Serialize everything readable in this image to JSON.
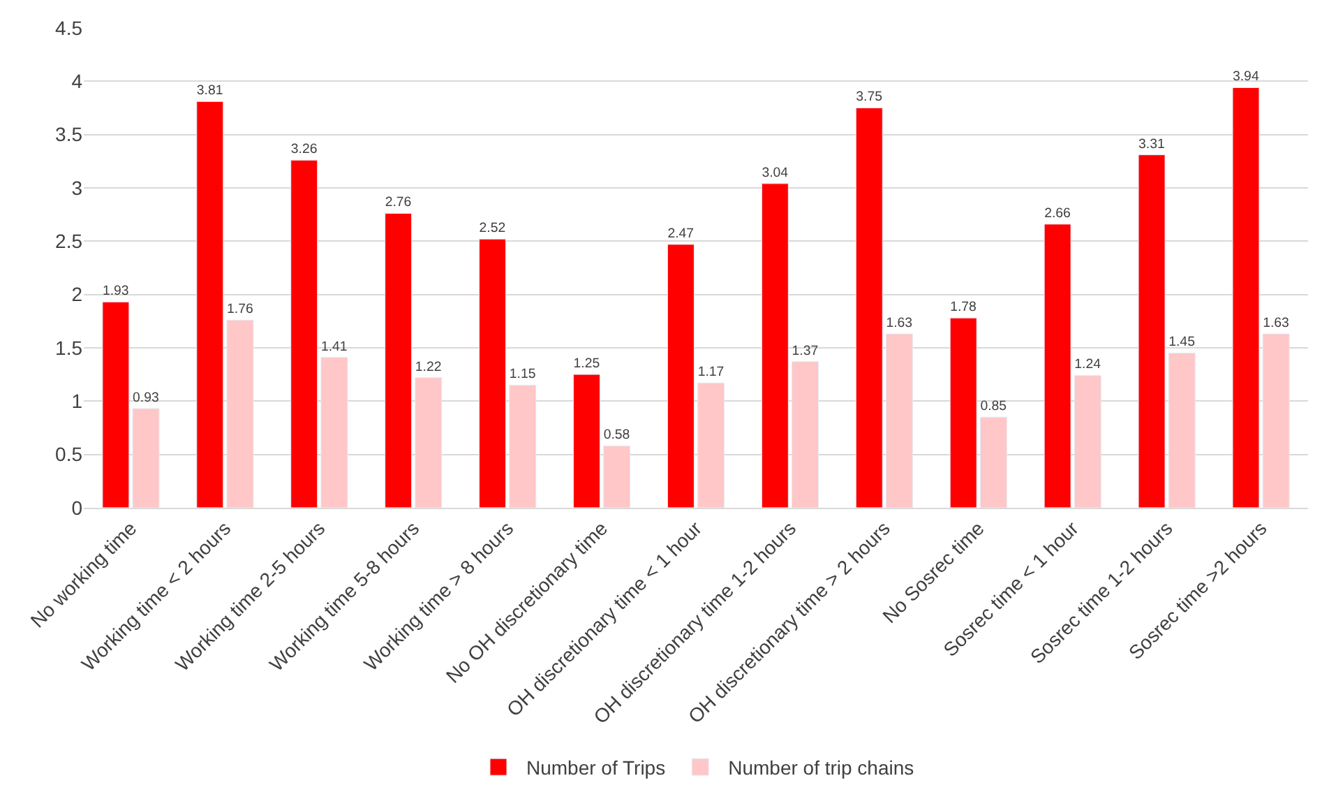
{
  "chart_data": {
    "type": "bar",
    "categories": [
      "No working time",
      "Working time < 2 hours",
      "Working time 2-5 hours",
      "Working time 5-8 hours",
      "Working time > 8 hours",
      "No OH discretionary time",
      "OH discretionary time < 1 hour",
      "OH discretionary time 1-2 hours",
      "OH discretionary time > 2 hours",
      "No Sosrec time",
      "Sosrec time < 1 hour",
      "Sosrec time 1-2 hours",
      "Sosrec time >2 hours"
    ],
    "series": [
      {
        "name": "Number of Trips",
        "color": "#ff0000",
        "values": [
          1.93,
          3.81,
          3.26,
          2.76,
          2.52,
          1.25,
          2.47,
          3.04,
          3.75,
          1.78,
          2.66,
          3.31,
          3.94
        ]
      },
      {
        "name": "Number of trip chains",
        "color": "#ffc7c7",
        "values": [
          0.93,
          1.76,
          1.41,
          1.22,
          1.15,
          0.58,
          1.17,
          1.37,
          1.63,
          0.85,
          1.24,
          1.45,
          1.63
        ]
      }
    ],
    "ylim": [
      0,
      4.5
    ],
    "yticks": [
      0,
      0.5,
      1,
      1.5,
      2,
      2.5,
      3,
      3.5,
      4,
      4.5
    ],
    "grid": "y",
    "legend": "bottom",
    "data_labels": true
  }
}
